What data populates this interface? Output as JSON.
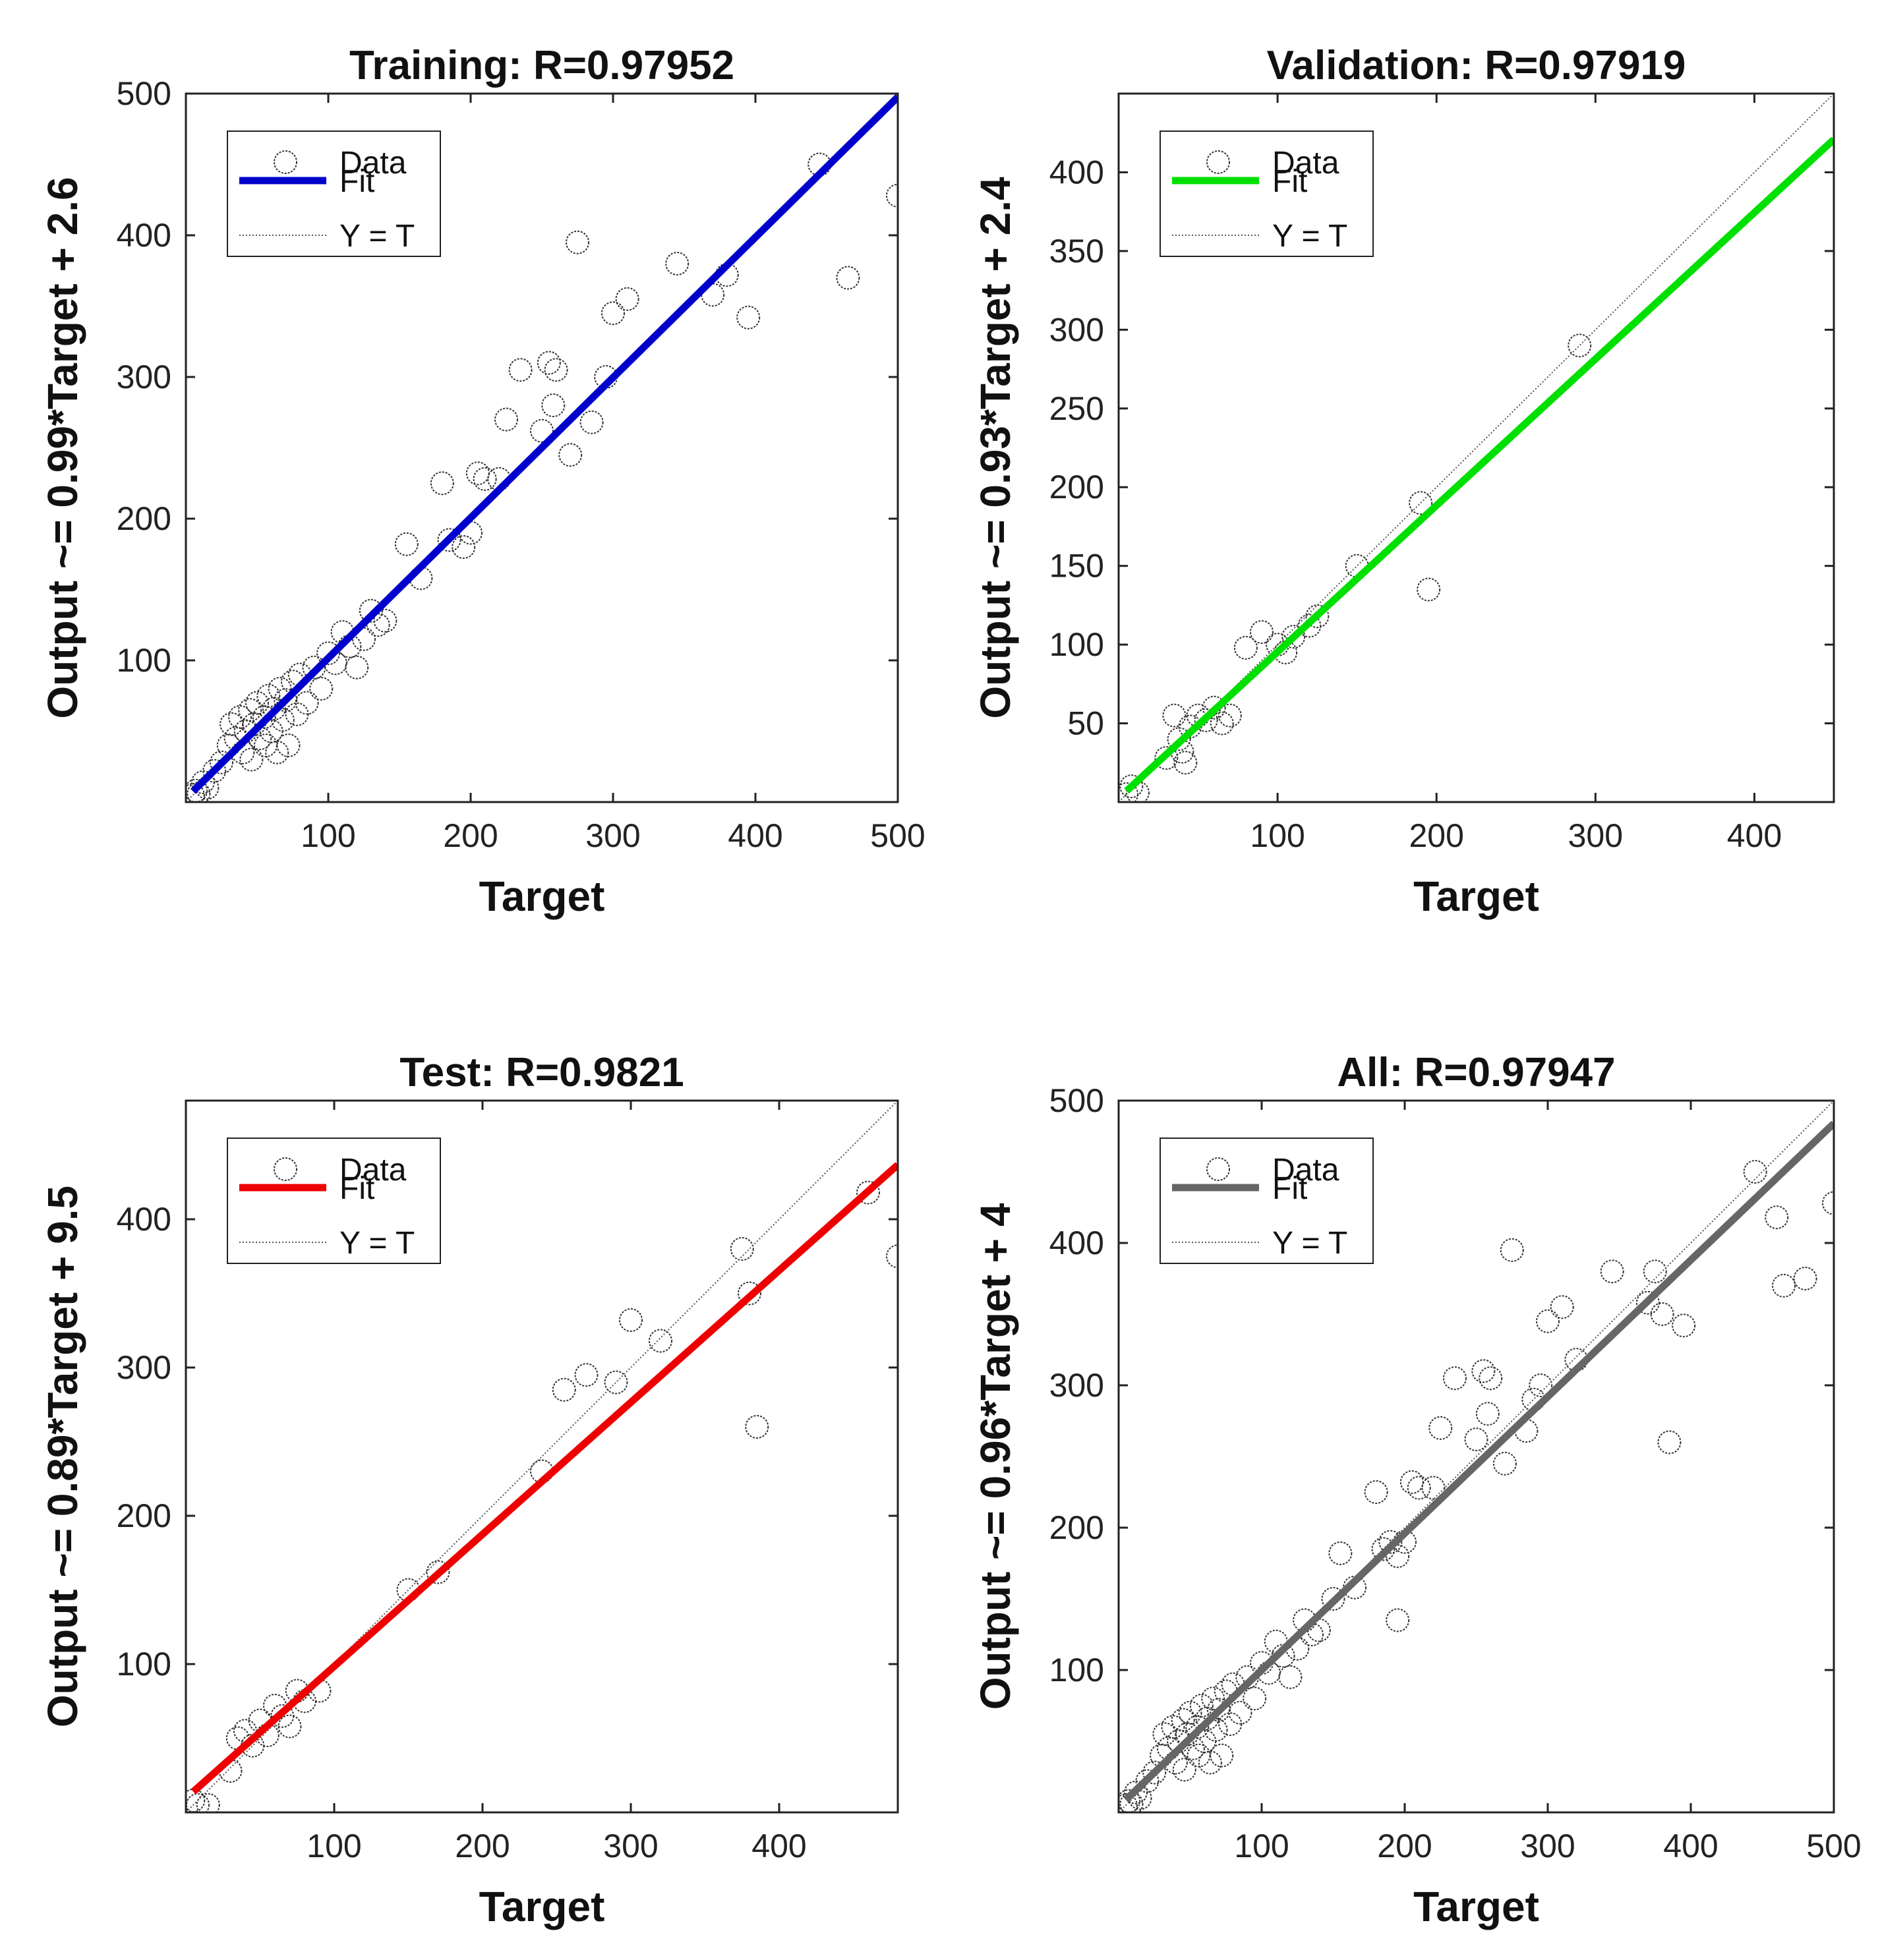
{
  "chart_data": [
    {
      "type": "scatter",
      "title": "Training: R=0.97952",
      "xlabel": "Target",
      "ylabel": "Output ~= 0.99*Target + 2.6",
      "xlim": [
        0,
        500
      ],
      "ylim": [
        0,
        500
      ],
      "xticks": [
        100,
        200,
        300,
        400,
        500
      ],
      "yticks": [
        100,
        200,
        300,
        400,
        500
      ],
      "fit": {
        "slope": 0.99,
        "intercept": 2.6,
        "color": "#0000cc"
      },
      "legend": {
        "position": "top-left",
        "entries": [
          "Data",
          "Fit",
          "Y = T"
        ]
      },
      "points": [
        [
          5,
          5
        ],
        [
          7,
          8
        ],
        [
          9,
          6
        ],
        [
          12,
          14
        ],
        [
          15,
          10
        ],
        [
          20,
          22
        ],
        [
          25,
          28
        ],
        [
          30,
          40
        ],
        [
          32,
          55
        ],
        [
          35,
          45
        ],
        [
          38,
          60
        ],
        [
          40,
          35
        ],
        [
          42,
          50
        ],
        [
          45,
          65
        ],
        [
          46,
          30
        ],
        [
          48,
          55
        ],
        [
          50,
          70
        ],
        [
          52,
          45
        ],
        [
          55,
          60
        ],
        [
          56,
          40
        ],
        [
          58,
          75
        ],
        [
          60,
          50
        ],
        [
          62,
          66
        ],
        [
          64,
          35
        ],
        [
          66,
          80
        ],
        [
          68,
          58
        ],
        [
          70,
          72
        ],
        [
          72,
          40
        ],
        [
          75,
          85
        ],
        [
          78,
          62
        ],
        [
          80,
          90
        ],
        [
          85,
          70
        ],
        [
          90,
          95
        ],
        [
          95,
          80
        ],
        [
          100,
          105
        ],
        [
          105,
          98
        ],
        [
          110,
          120
        ],
        [
          115,
          110
        ],
        [
          120,
          95
        ],
        [
          125,
          115
        ],
        [
          130,
          135
        ],
        [
          135,
          125
        ],
        [
          140,
          128
        ],
        [
          155,
          182
        ],
        [
          165,
          158
        ],
        [
          180,
          225
        ],
        [
          185,
          185
        ],
        [
          195,
          180
        ],
        [
          200,
          190
        ],
        [
          205,
          232
        ],
        [
          210,
          228
        ],
        [
          220,
          228
        ],
        [
          225,
          270
        ],
        [
          235,
          305
        ],
        [
          250,
          262
        ],
        [
          255,
          310
        ],
        [
          258,
          280
        ],
        [
          260,
          305
        ],
        [
          270,
          245
        ],
        [
          275,
          395
        ],
        [
          285,
          268
        ],
        [
          295,
          300
        ],
        [
          300,
          345
        ],
        [
          310,
          355
        ],
        [
          345,
          380
        ],
        [
          370,
          358
        ],
        [
          380,
          372
        ],
        [
          395,
          342
        ],
        [
          445,
          450
        ],
        [
          465,
          370
        ],
        [
          500,
          428
        ]
      ]
    },
    {
      "type": "scatter",
      "title": "Validation: R=0.97919",
      "xlabel": "Target",
      "ylabel": "Output ~= 0.93*Target + 2.4",
      "xlim": [
        0,
        450
      ],
      "ylim": [
        0,
        450
      ],
      "xticks": [
        100,
        200,
        300,
        400
      ],
      "yticks": [
        50,
        100,
        150,
        200,
        250,
        300,
        350,
        400
      ],
      "fit": {
        "slope": 0.93,
        "intercept": 2.4,
        "color": "#00e000"
      },
      "legend": {
        "position": "top-left",
        "entries": [
          "Data",
          "Fit",
          "Y = T"
        ]
      },
      "points": [
        [
          5,
          5
        ],
        [
          8,
          10
        ],
        [
          12,
          6
        ],
        [
          30,
          28
        ],
        [
          35,
          55
        ],
        [
          38,
          40
        ],
        [
          40,
          32
        ],
        [
          42,
          25
        ],
        [
          45,
          48
        ],
        [
          50,
          55
        ],
        [
          55,
          52
        ],
        [
          60,
          60
        ],
        [
          65,
          50
        ],
        [
          70,
          55
        ],
        [
          80,
          98
        ],
        [
          90,
          108
        ],
        [
          100,
          100
        ],
        [
          105,
          95
        ],
        [
          110,
          105
        ],
        [
          120,
          112
        ],
        [
          125,
          118
        ],
        [
          150,
          150
        ],
        [
          190,
          190
        ],
        [
          195,
          135
        ],
        [
          290,
          290
        ]
      ]
    },
    {
      "type": "scatter",
      "title": "Test: R=0.9821",
      "xlabel": "Target",
      "ylabel": "Output ~= 0.89*Target + 9.5",
      "xlim": [
        0,
        480
      ],
      "ylim": [
        0,
        480
      ],
      "xticks": [
        100,
        200,
        300,
        400
      ],
      "yticks": [
        100,
        200,
        300,
        400
      ],
      "fit": {
        "slope": 0.89,
        "intercept": 9.5,
        "color": "#ee0000"
      },
      "legend": {
        "position": "top-left",
        "entries": [
          "Data",
          "Fit",
          "Y = T"
        ]
      },
      "points": [
        [
          5,
          8
        ],
        [
          8,
          5
        ],
        [
          15,
          5
        ],
        [
          30,
          28
        ],
        [
          35,
          50
        ],
        [
          40,
          55
        ],
        [
          45,
          45
        ],
        [
          50,
          62
        ],
        [
          55,
          52
        ],
        [
          60,
          72
        ],
        [
          65,
          65
        ],
        [
          70,
          58
        ],
        [
          75,
          82
        ],
        [
          80,
          75
        ],
        [
          90,
          82
        ],
        [
          150,
          150
        ],
        [
          170,
          162
        ],
        [
          240,
          230
        ],
        [
          255,
          285
        ],
        [
          270,
          295
        ],
        [
          290,
          290
        ],
        [
          300,
          332
        ],
        [
          320,
          318
        ],
        [
          375,
          380
        ],
        [
          380,
          350
        ],
        [
          385,
          260
        ],
        [
          460,
          418
        ],
        [
          480,
          375
        ]
      ]
    },
    {
      "type": "scatter",
      "title": "All: R=0.97947",
      "xlabel": "Target",
      "ylabel": "Output ~= 0.96*Target + 4",
      "xlim": [
        0,
        500
      ],
      "ylim": [
        0,
        500
      ],
      "xticks": [
        100,
        200,
        300,
        400,
        500
      ],
      "yticks": [
        100,
        200,
        300,
        400,
        500
      ],
      "fit": {
        "slope": 0.96,
        "intercept": 4,
        "color": "#666666"
      },
      "legend": {
        "position": "top-left",
        "entries": [
          "Data",
          "Fit",
          "Y = T"
        ]
      },
      "points": [
        [
          5,
          5
        ],
        [
          7,
          8
        ],
        [
          9,
          6
        ],
        [
          12,
          14
        ],
        [
          15,
          10
        ],
        [
          20,
          22
        ],
        [
          25,
          28
        ],
        [
          30,
          40
        ],
        [
          32,
          55
        ],
        [
          35,
          45
        ],
        [
          38,
          60
        ],
        [
          40,
          35
        ],
        [
          42,
          50
        ],
        [
          45,
          65
        ],
        [
          46,
          30
        ],
        [
          48,
          55
        ],
        [
          50,
          70
        ],
        [
          52,
          45
        ],
        [
          55,
          60
        ],
        [
          56,
          40
        ],
        [
          58,
          75
        ],
        [
          60,
          50
        ],
        [
          62,
          66
        ],
        [
          64,
          35
        ],
        [
          66,
          80
        ],
        [
          68,
          58
        ],
        [
          70,
          72
        ],
        [
          72,
          40
        ],
        [
          75,
          85
        ],
        [
          78,
          62
        ],
        [
          80,
          90
        ],
        [
          85,
          70
        ],
        [
          90,
          95
        ],
        [
          95,
          80
        ],
        [
          100,
          105
        ],
        [
          105,
          98
        ],
        [
          110,
          120
        ],
        [
          115,
          110
        ],
        [
          120,
          95
        ],
        [
          125,
          115
        ],
        [
          130,
          135
        ],
        [
          135,
          125
        ],
        [
          140,
          128
        ],
        [
          150,
          150
        ],
        [
          155,
          182
        ],
        [
          165,
          158
        ],
        [
          180,
          225
        ],
        [
          185,
          185
        ],
        [
          190,
          190
        ],
        [
          195,
          135
        ],
        [
          195,
          180
        ],
        [
          200,
          190
        ],
        [
          205,
          232
        ],
        [
          210,
          228
        ],
        [
          220,
          228
        ],
        [
          225,
          270
        ],
        [
          235,
          305
        ],
        [
          250,
          262
        ],
        [
          255,
          310
        ],
        [
          258,
          280
        ],
        [
          260,
          305
        ],
        [
          270,
          245
        ],
        [
          275,
          395
        ],
        [
          285,
          268
        ],
        [
          290,
          290
        ],
        [
          295,
          300
        ],
        [
          300,
          345
        ],
        [
          310,
          355
        ],
        [
          320,
          318
        ],
        [
          345,
          380
        ],
        [
          370,
          358
        ],
        [
          375,
          380
        ],
        [
          380,
          350
        ],
        [
          385,
          260
        ],
        [
          395,
          342
        ],
        [
          445,
          450
        ],
        [
          460,
          418
        ],
        [
          465,
          370
        ],
        [
          480,
          375
        ],
        [
          500,
          428
        ]
      ]
    }
  ]
}
